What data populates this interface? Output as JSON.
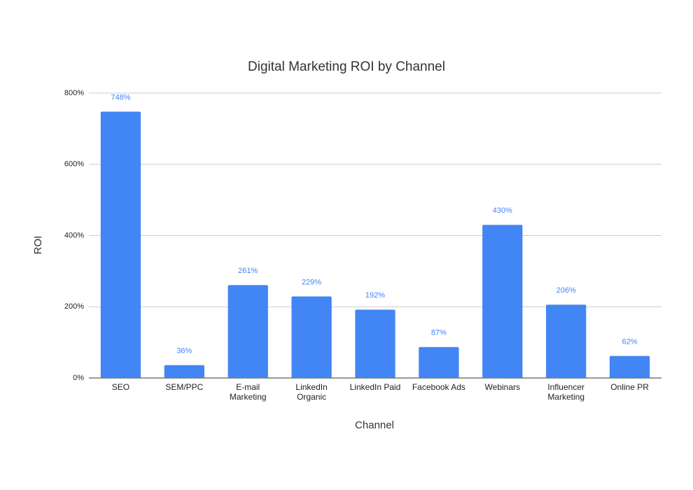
{
  "chart_data": {
    "type": "bar",
    "title": "Digital Marketing ROI by Channel",
    "x_label": "Channel",
    "y_label": "ROI",
    "categories": [
      "SEO",
      "SEM/PPC",
      "E-mail Marketing",
      "LinkedIn Organic",
      "LinkedIn Paid",
      "Facebook Ads",
      "Webinars",
      "Influencer Marketing",
      "Online PR"
    ],
    "values": [
      748,
      36,
      261,
      229,
      192,
      87,
      430,
      206,
      62
    ],
    "value_labels": [
      "748%",
      "36%",
      "261%",
      "229%",
      "192%",
      "87%",
      "430%",
      "206%",
      "62%"
    ],
    "color": "#4285f4",
    "ylim": [
      0,
      800
    ],
    "yticks": [
      {
        "value": 0,
        "label": "0%"
      },
      {
        "value": 200,
        "label": "200%"
      },
      {
        "value": 400,
        "label": "400%"
      },
      {
        "value": 600,
        "label": "600%"
      },
      {
        "value": 800,
        "label": "800%"
      }
    ],
    "grid": true
  }
}
